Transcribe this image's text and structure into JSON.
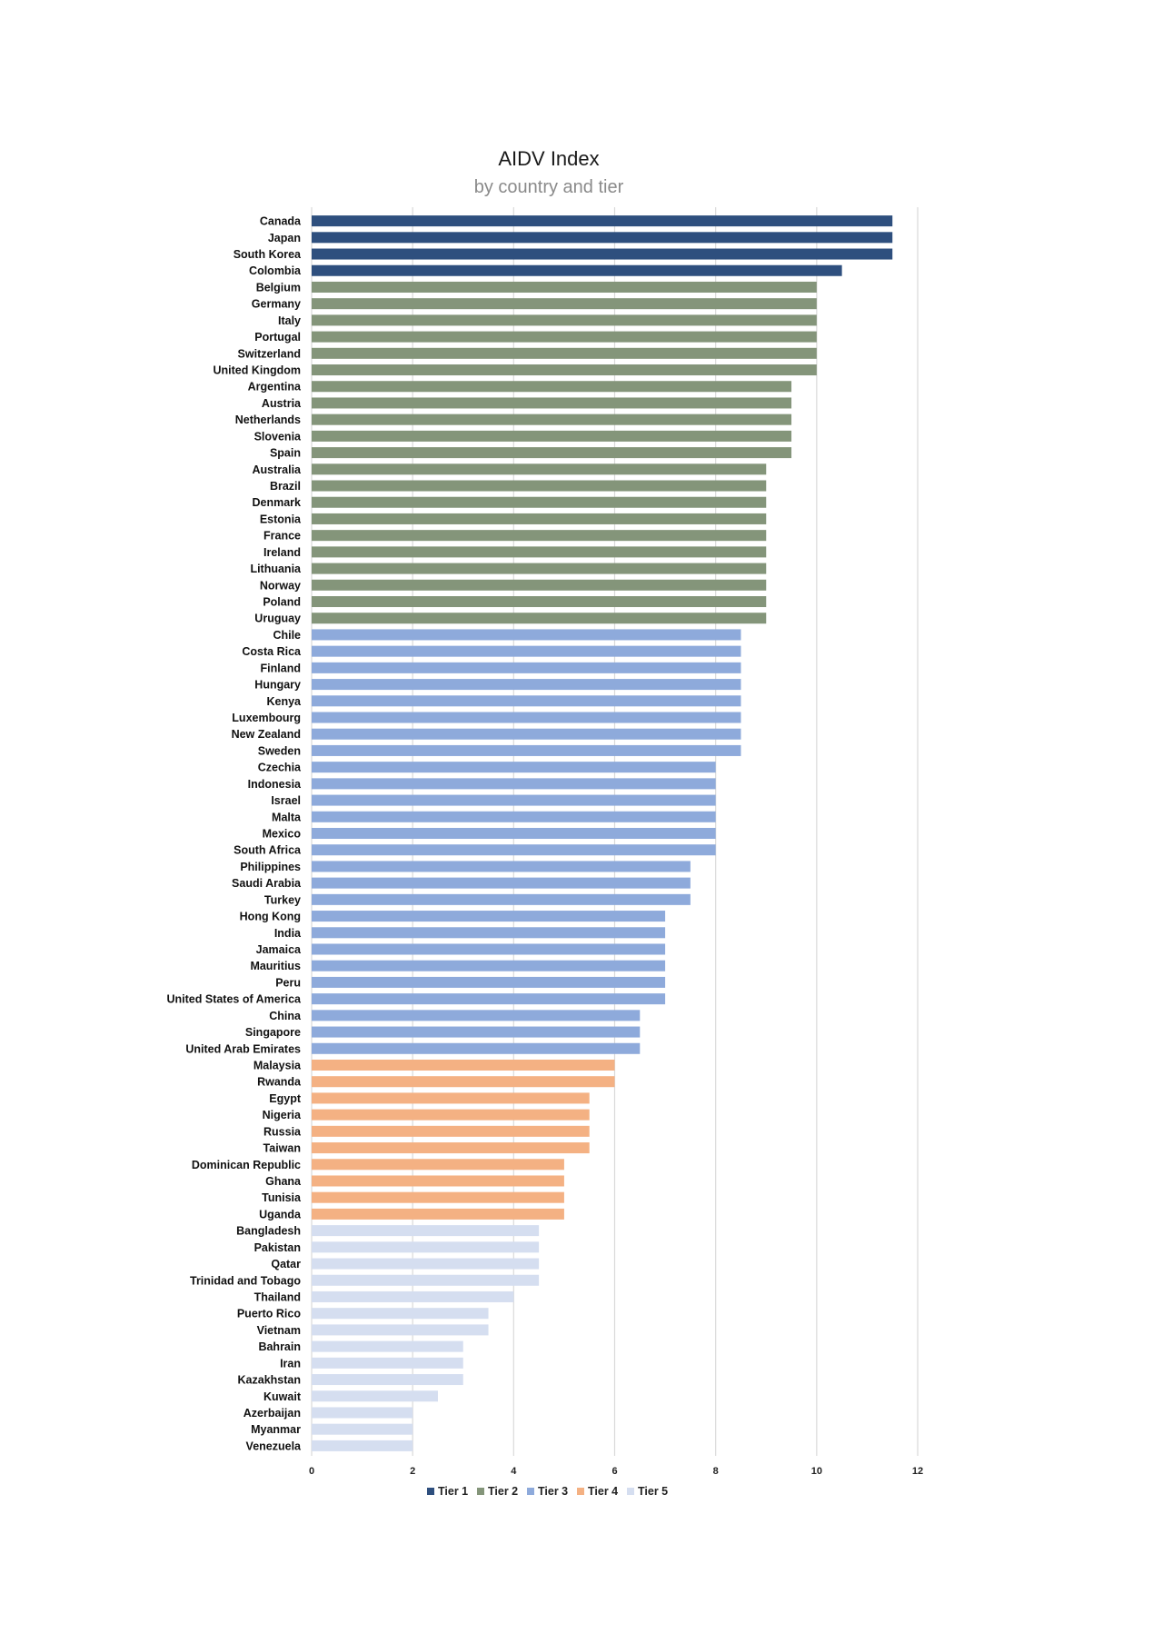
{
  "chart_data": {
    "type": "bar",
    "orientation": "horizontal",
    "title": "AIDV Index",
    "subtitle": "by country and tier",
    "xlabel": "",
    "ylabel": "",
    "xlim": [
      0,
      12
    ],
    "xticks": [
      0,
      2,
      4,
      6,
      8,
      10,
      12
    ],
    "grid": true,
    "legend_position": "bottom",
    "tiers": [
      {
        "name": "Tier 1",
        "color": "#2e4f7e"
      },
      {
        "name": "Tier 2",
        "color": "#84957a"
      },
      {
        "name": "Tier 3",
        "color": "#8eaadb"
      },
      {
        "name": "Tier 4",
        "color": "#f4b183"
      },
      {
        "name": "Tier 5",
        "color": "#d5def0"
      }
    ],
    "bars": [
      {
        "country": "Canada",
        "value": 11.5,
        "tier": 1
      },
      {
        "country": "Japan",
        "value": 11.5,
        "tier": 1
      },
      {
        "country": "South Korea",
        "value": 11.5,
        "tier": 1
      },
      {
        "country": "Colombia",
        "value": 10.5,
        "tier": 1
      },
      {
        "country": "Belgium",
        "value": 10,
        "tier": 2
      },
      {
        "country": "Germany",
        "value": 10,
        "tier": 2
      },
      {
        "country": "Italy",
        "value": 10,
        "tier": 2
      },
      {
        "country": "Portugal",
        "value": 10,
        "tier": 2
      },
      {
        "country": "Switzerland",
        "value": 10,
        "tier": 2
      },
      {
        "country": "United Kingdom",
        "value": 10,
        "tier": 2
      },
      {
        "country": "Argentina",
        "value": 9.5,
        "tier": 2
      },
      {
        "country": "Austria",
        "value": 9.5,
        "tier": 2
      },
      {
        "country": "Netherlands",
        "value": 9.5,
        "tier": 2
      },
      {
        "country": "Slovenia",
        "value": 9.5,
        "tier": 2
      },
      {
        "country": "Spain",
        "value": 9.5,
        "tier": 2
      },
      {
        "country": "Australia",
        "value": 9,
        "tier": 2
      },
      {
        "country": "Brazil",
        "value": 9,
        "tier": 2
      },
      {
        "country": "Denmark",
        "value": 9,
        "tier": 2
      },
      {
        "country": "Estonia",
        "value": 9,
        "tier": 2
      },
      {
        "country": "France",
        "value": 9,
        "tier": 2
      },
      {
        "country": "Ireland",
        "value": 9,
        "tier": 2
      },
      {
        "country": "Lithuania",
        "value": 9,
        "tier": 2
      },
      {
        "country": "Norway",
        "value": 9,
        "tier": 2
      },
      {
        "country": "Poland",
        "value": 9,
        "tier": 2
      },
      {
        "country": "Uruguay",
        "value": 9,
        "tier": 2
      },
      {
        "country": "Chile",
        "value": 8.5,
        "tier": 3
      },
      {
        "country": "Costa Rica",
        "value": 8.5,
        "tier": 3
      },
      {
        "country": "Finland",
        "value": 8.5,
        "tier": 3
      },
      {
        "country": "Hungary",
        "value": 8.5,
        "tier": 3
      },
      {
        "country": "Kenya",
        "value": 8.5,
        "tier": 3
      },
      {
        "country": "Luxembourg",
        "value": 8.5,
        "tier": 3
      },
      {
        "country": "New Zealand",
        "value": 8.5,
        "tier": 3
      },
      {
        "country": "Sweden",
        "value": 8.5,
        "tier": 3
      },
      {
        "country": "Czechia",
        "value": 8,
        "tier": 3
      },
      {
        "country": "Indonesia",
        "value": 8,
        "tier": 3
      },
      {
        "country": "Israel",
        "value": 8,
        "tier": 3
      },
      {
        "country": "Malta",
        "value": 8,
        "tier": 3
      },
      {
        "country": "Mexico",
        "value": 8,
        "tier": 3
      },
      {
        "country": "South Africa",
        "value": 8,
        "tier": 3
      },
      {
        "country": "Philippines",
        "value": 7.5,
        "tier": 3
      },
      {
        "country": "Saudi Arabia",
        "value": 7.5,
        "tier": 3
      },
      {
        "country": "Turkey",
        "value": 7.5,
        "tier": 3
      },
      {
        "country": "Hong Kong",
        "value": 7,
        "tier": 3
      },
      {
        "country": "India",
        "value": 7,
        "tier": 3
      },
      {
        "country": "Jamaica",
        "value": 7,
        "tier": 3
      },
      {
        "country": "Mauritius",
        "value": 7,
        "tier": 3
      },
      {
        "country": "Peru",
        "value": 7,
        "tier": 3
      },
      {
        "country": "United States of America",
        "value": 7,
        "tier": 3
      },
      {
        "country": "China",
        "value": 6.5,
        "tier": 3
      },
      {
        "country": "Singapore",
        "value": 6.5,
        "tier": 3
      },
      {
        "country": "United Arab Emirates",
        "value": 6.5,
        "tier": 3
      },
      {
        "country": "Malaysia",
        "value": 6,
        "tier": 4
      },
      {
        "country": "Rwanda",
        "value": 6,
        "tier": 4
      },
      {
        "country": "Egypt",
        "value": 5.5,
        "tier": 4
      },
      {
        "country": "Nigeria",
        "value": 5.5,
        "tier": 4
      },
      {
        "country": "Russia",
        "value": 5.5,
        "tier": 4
      },
      {
        "country": "Taiwan",
        "value": 5.5,
        "tier": 4
      },
      {
        "country": "Dominican Republic",
        "value": 5,
        "tier": 4
      },
      {
        "country": "Ghana",
        "value": 5,
        "tier": 4
      },
      {
        "country": "Tunisia",
        "value": 5,
        "tier": 4
      },
      {
        "country": "Uganda",
        "value": 5,
        "tier": 4
      },
      {
        "country": "Bangladesh",
        "value": 4.5,
        "tier": 5
      },
      {
        "country": "Pakistan",
        "value": 4.5,
        "tier": 5
      },
      {
        "country": "Qatar",
        "value": 4.5,
        "tier": 5
      },
      {
        "country": "Trinidad and Tobago",
        "value": 4.5,
        "tier": 5
      },
      {
        "country": "Thailand",
        "value": 4,
        "tier": 5
      },
      {
        "country": "Puerto Rico",
        "value": 3.5,
        "tier": 5
      },
      {
        "country": "Vietnam",
        "value": 3.5,
        "tier": 5
      },
      {
        "country": "Bahrain",
        "value": 3,
        "tier": 5
      },
      {
        "country": "Iran",
        "value": 3,
        "tier": 5
      },
      {
        "country": "Kazakhstan",
        "value": 3,
        "tier": 5
      },
      {
        "country": "Kuwait",
        "value": 2.5,
        "tier": 5
      },
      {
        "country": "Azerbaijan",
        "value": 2,
        "tier": 5
      },
      {
        "country": "Myanmar",
        "value": 2,
        "tier": 5
      },
      {
        "country": "Venezuela",
        "value": 2,
        "tier": 5
      }
    ]
  }
}
